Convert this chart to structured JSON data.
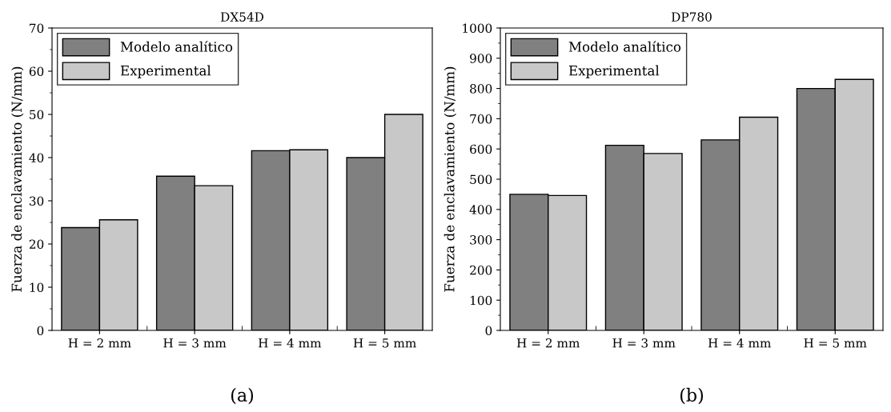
{
  "chart_data": [
    {
      "type": "bar",
      "title": "DX54D",
      "ylabel": "Fuerza de enclavamiento (N/mm)",
      "categories": [
        "H = 2 mm",
        "H = 3 mm",
        "H = 4 mm",
        "H = 5 mm"
      ],
      "series": [
        {
          "name": "Modelo analítico",
          "color": "#808080",
          "values": [
            23.8,
            35.7,
            41.6,
            40.0
          ]
        },
        {
          "name": "Experimental",
          "color": "#c8c8c8",
          "values": [
            25.6,
            33.5,
            41.8,
            50.0
          ]
        }
      ],
      "ylim": [
        0,
        70
      ],
      "yticks": [
        0,
        10,
        20,
        30,
        40,
        50,
        60,
        70
      ],
      "legend": "top left",
      "grid": false,
      "annotations": [
        "(a)"
      ]
    },
    {
      "type": "bar",
      "title": "DP780",
      "ylabel": "Fuerza de enclavamiento (N/mm)",
      "categories": [
        "H = 2 mm",
        "H = 3 mm",
        "H = 4 mm",
        "H = 5 mm"
      ],
      "series": [
        {
          "name": "Modelo analítico",
          "color": "#808080",
          "values": [
            450,
            612,
            630,
            800
          ]
        },
        {
          "name": "Experimental",
          "color": "#c8c8c8",
          "values": [
            446,
            585,
            705,
            830
          ]
        }
      ],
      "ylim": [
        0,
        1000
      ],
      "yticks": [
        0,
        100,
        200,
        300,
        400,
        500,
        600,
        700,
        800,
        900,
        1000
      ],
      "legend": "top left",
      "grid": false,
      "annotations": [
        "(b)"
      ]
    }
  ]
}
